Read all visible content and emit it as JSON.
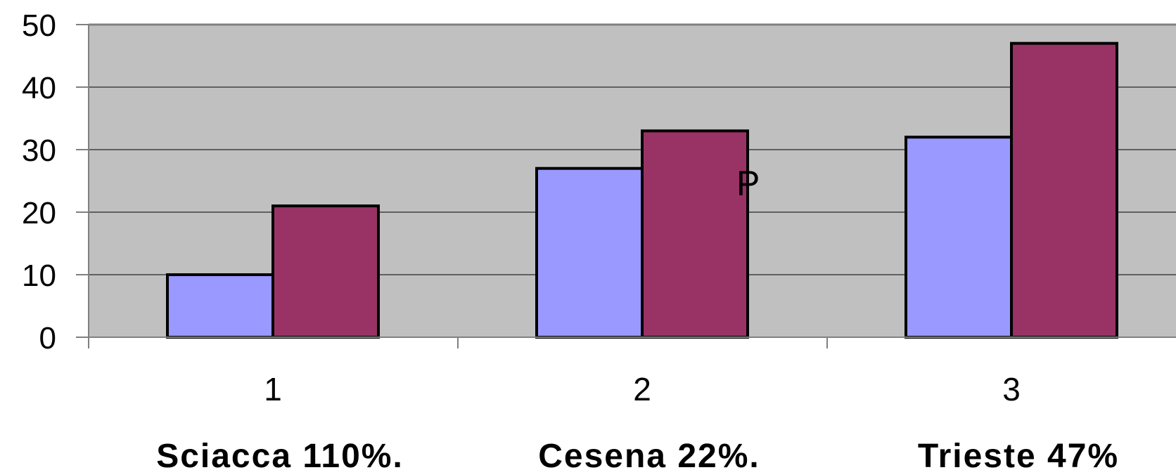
{
  "chart_data": {
    "type": "bar",
    "categories": [
      "1",
      "2",
      "3"
    ],
    "category_captions": [
      "Sciacca 110%.",
      "Cesena 22%.",
      "Trieste 47%"
    ],
    "series": [
      {
        "values": [
          10,
          27,
          32
        ],
        "color": "#9999ff"
      },
      {
        "values": [
          21,
          33,
          47
        ],
        "color": "#993366"
      }
    ],
    "y_ticks": [
      "0",
      "10",
      "20",
      "30",
      "40",
      "50"
    ],
    "ylim": [
      0,
      50
    ],
    "grid": true,
    "plot_background": "#c0c0c0",
    "annotation": "P"
  }
}
